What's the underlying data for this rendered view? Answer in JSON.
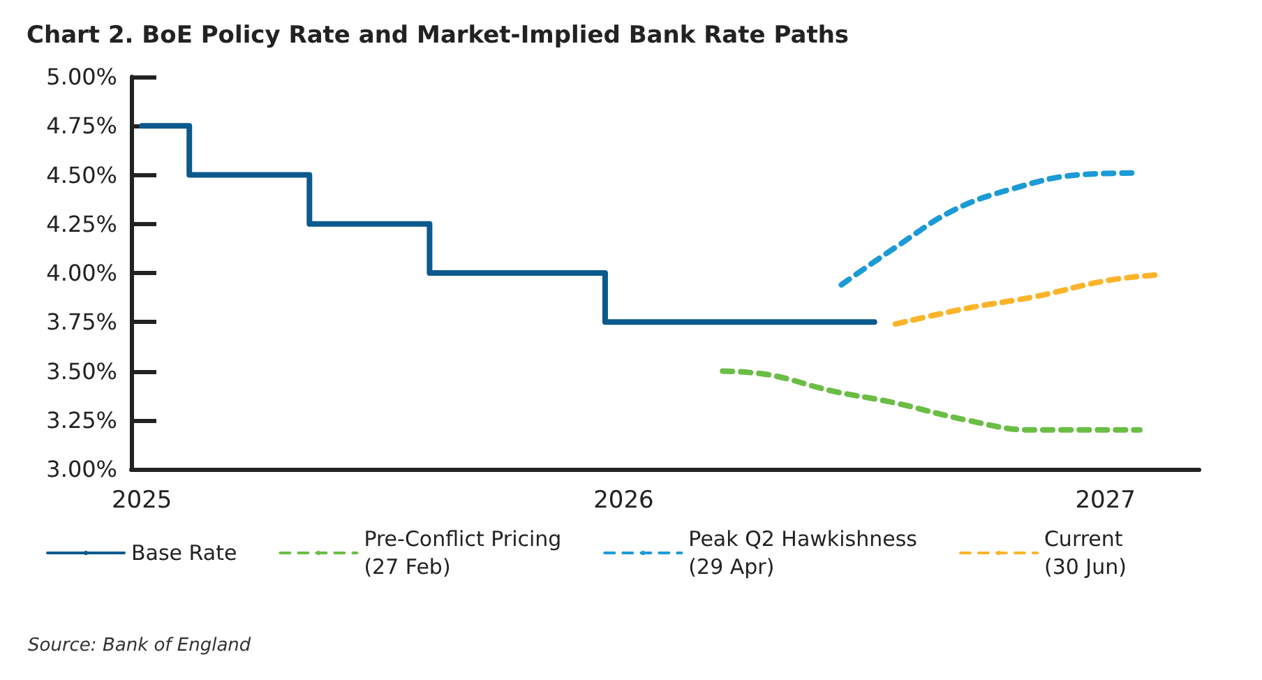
{
  "chart_data": {
    "type": "line",
    "title": "Chart 2. BoE Policy Rate and Market-Implied Bank Rate Paths",
    "annotations": [
      "Source: Bank of England"
    ],
    "xlim": [
      "2024-12-24",
      "2027-03-13"
    ],
    "xticks": [
      "2025",
      "2026",
      "2027"
    ],
    "ylim": [
      3,
      5
    ],
    "yticks": [
      {
        "value": 3,
        "label": "3.00%"
      },
      {
        "value": 3.25,
        "label": "3.25%"
      },
      {
        "value": 3.5,
        "label": "3.50%"
      },
      {
        "value": 3.75,
        "label": "3.75%"
      },
      {
        "value": 4,
        "label": "4.00%"
      },
      {
        "value": 4.25,
        "label": "4.25%"
      },
      {
        "value": 4.5,
        "label": "4.50%"
      },
      {
        "value": 4.75,
        "label": "4.75%"
      },
      {
        "value": 5,
        "label": "5.00%"
      }
    ],
    "grid": false,
    "legend": "bottom",
    "marker": "none",
    "series": [
      {
        "name": "Base Rate",
        "type": "step",
        "color": "#0b5a8e",
        "line_style": "solid",
        "x": [
          "2025-01-01",
          "2025-02-06",
          "2025-05-08",
          "2025-08-07",
          "2025-12-18",
          "2026-07-10"
        ],
        "values": [
          4.75,
          4.5,
          4.25,
          4.0,
          3.75,
          3.75
        ]
      },
      {
        "name": "Pre-Conflict Pricing\n(27 Feb)",
        "color": "#6abd45",
        "line_style": "dashed",
        "x": [
          "2026-03-17",
          "2026-04-22",
          "2026-06-07",
          "2026-07-24",
          "2026-09-18",
          "2026-11-05",
          "2027-01-27"
        ],
        "values": [
          3.5,
          3.48,
          3.4,
          3.34,
          3.25,
          3.2,
          3.2
        ]
      },
      {
        "name": "Peak Q2 Hawkishness\n(29 Apr)",
        "color": "#1b9ad6",
        "line_style": "dashed",
        "x": [
          "2026-06-15",
          "2026-07-28",
          "2026-09-08",
          "2026-10-23",
          "2026-12-11",
          "2027-01-27"
        ],
        "values": [
          3.94,
          4.14,
          4.32,
          4.43,
          4.5,
          4.51
        ]
      },
      {
        "name": "Current\n(30 Jun)",
        "color": "#fbb42a",
        "line_style": "dashed",
        "x": [
          "2026-07-26",
          "2026-09-18",
          "2026-11-09",
          "2027-01-01",
          "2027-02-08"
        ],
        "values": [
          3.74,
          3.82,
          3.88,
          3.96,
          3.99
        ]
      }
    ]
  }
}
